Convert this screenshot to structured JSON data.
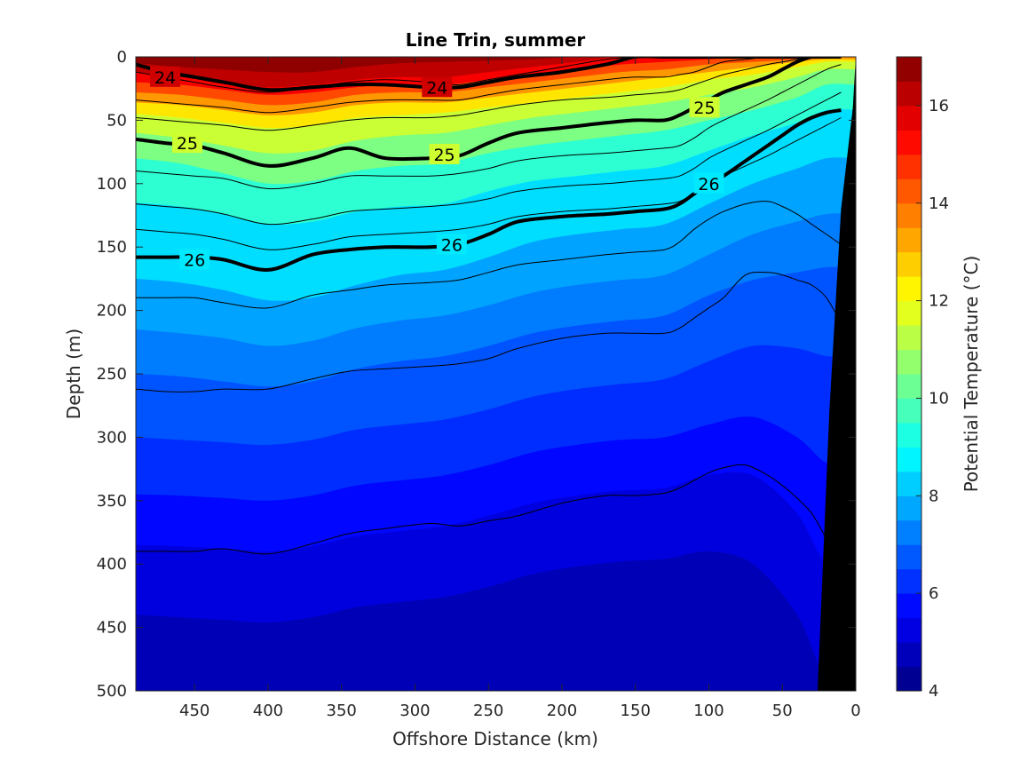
{
  "chart_data": {
    "type": "heatmap",
    "title": "Line Trin, summer",
    "xlabel": "Offshore Distance (km)",
    "ylabel": "Depth (m)",
    "xlim": [
      490,
      0
    ],
    "ylim": [
      0,
      500
    ],
    "x_reversed": true,
    "y_reversed": true,
    "xticks": [
      "450",
      "400",
      "350",
      "300",
      "250",
      "200",
      "150",
      "100",
      "50",
      "0"
    ],
    "yticks": [
      "0",
      "50",
      "100",
      "150",
      "200",
      "250",
      "300",
      "350",
      "400",
      "450",
      "500"
    ],
    "colorbar": {
      "label": "Potential Temperature (°C)",
      "range": [
        4,
        17
      ],
      "ticks": [
        "4",
        "6",
        "8",
        "10",
        "12",
        "14",
        "16"
      ],
      "levels": [
        4.0,
        4.5,
        5.0,
        5.5,
        6.0,
        6.5,
        7.0,
        7.5,
        8.0,
        8.5,
        9.0,
        9.5,
        10.0,
        10.5,
        11.0,
        11.5,
        12.0,
        12.5,
        13.0,
        13.5,
        14.0,
        14.5,
        15.0,
        15.5,
        16.0,
        16.5,
        17.0
      ]
    },
    "x": [
      490,
      460,
      430,
      400,
      370,
      340,
      310,
      280,
      250,
      220,
      190,
      160,
      130,
      100,
      70,
      40,
      20
    ],
    "temperature_isotherms": [
      {
        "temp": 16.5,
        "depth": [
          5,
          8,
          10,
          12,
          12,
          8,
          5,
          4,
          3,
          2,
          0,
          0,
          0,
          0,
          0,
          0,
          0
        ]
      },
      {
        "temp": 16.0,
        "depth": [
          12,
          16,
          20,
          24,
          22,
          18,
          16,
          16,
          12,
          8,
          4,
          0,
          0,
          0,
          0,
          0,
          0
        ]
      },
      {
        "temp": 15.0,
        "depth": [
          20,
          22,
          26,
          30,
          28,
          24,
          22,
          22,
          18,
          14,
          10,
          6,
          4,
          2,
          0,
          0,
          0
        ]
      },
      {
        "temp": 14.0,
        "depth": [
          28,
          30,
          34,
          38,
          36,
          30,
          28,
          28,
          24,
          20,
          16,
          12,
          10,
          6,
          4,
          2,
          0
        ]
      },
      {
        "temp": 13.0,
        "depth": [
          36,
          38,
          42,
          46,
          44,
          38,
          36,
          36,
          32,
          28,
          24,
          20,
          16,
          12,
          8,
          4,
          2
        ]
      },
      {
        "temp": 12.0,
        "depth": [
          45,
          48,
          52,
          56,
          54,
          48,
          46,
          44,
          40,
          36,
          32,
          28,
          24,
          18,
          14,
          8,
          4
        ]
      },
      {
        "temp": 11.0,
        "depth": [
          60,
          64,
          70,
          76,
          74,
          66,
          62,
          60,
          54,
          48,
          44,
          40,
          36,
          30,
          24,
          16,
          10
        ]
      },
      {
        "temp": 10.0,
        "depth": [
          80,
          84,
          92,
          100,
          98,
          90,
          86,
          84,
          76,
          70,
          66,
          62,
          58,
          50,
          42,
          32,
          22
        ]
      },
      {
        "temp": 9.0,
        "depth": [
          115,
          118,
          124,
          132,
          130,
          122,
          118,
          116,
          106,
          98,
          94,
          90,
          86,
          74,
          62,
          52,
          42
        ]
      },
      {
        "temp": 8.0,
        "depth": [
          175,
          178,
          184,
          192,
          190,
          180,
          172,
          168,
          158,
          146,
          140,
          136,
          132,
          116,
          100,
          88,
          80
        ]
      },
      {
        "temp": 7.5,
        "depth": [
          215,
          218,
          222,
          228,
          224,
          214,
          208,
          204,
          196,
          186,
          180,
          176,
          172,
          156,
          140,
          130,
          124
        ]
      },
      {
        "temp": 7.0,
        "depth": [
          250,
          252,
          256,
          260,
          256,
          246,
          240,
          236,
          228,
          218,
          212,
          208,
          204,
          188,
          176,
          170,
          166
        ]
      },
      {
        "temp": 6.5,
        "depth": [
          300,
          302,
          304,
          306,
          302,
          294,
          290,
          286,
          278,
          268,
          262,
          258,
          254,
          240,
          228,
          230,
          236
        ]
      },
      {
        "temp": 6.0,
        "depth": [
          345,
          346,
          348,
          350,
          346,
          338,
          334,
          330,
          322,
          312,
          306,
          302,
          300,
          290,
          284,
          300,
          320
        ]
      },
      {
        "temp": 5.5,
        "depth": [
          385,
          386,
          388,
          390,
          386,
          378,
          374,
          370,
          362,
          352,
          346,
          342,
          340,
          330,
          330,
          360,
          400
        ]
      },
      {
        "temp": 5.0,
        "depth": [
          440,
          442,
          444,
          446,
          442,
          434,
          430,
          426,
          418,
          408,
          402,
          398,
          396,
          390,
          400,
          440,
          490
        ]
      },
      {
        "temp": 4.5,
        "depth": [
          500,
          500,
          500,
          500,
          500,
          500,
          500,
          500,
          500,
          500,
          500,
          500,
          500,
          500,
          500,
          500,
          500
        ]
      }
    ],
    "density_contours": {
      "x": [
        490,
        470,
        450,
        430,
        400,
        370,
        345,
        320,
        290,
        270,
        250,
        230,
        200,
        170,
        150,
        130,
        120,
        110,
        100,
        90,
        75,
        60,
        50,
        40,
        30,
        20,
        10
      ],
      "thin": [
        {
          "depth": [
            12,
            16,
            20,
            24,
            28,
            24,
            20,
            18,
            20,
            22,
            18,
            14,
            8,
            2,
            0,
            0,
            0,
            0,
            0,
            0,
            0,
            0,
            0,
            0,
            0,
            0,
            0
          ]
        },
        {
          "depth": [
            34,
            36,
            38,
            40,
            44,
            40,
            36,
            34,
            34,
            34,
            30,
            26,
            22,
            18,
            16,
            16,
            14,
            12,
            8,
            4,
            2,
            0,
            0,
            0,
            0,
            0,
            0
          ]
        },
        {
          "depth": [
            48,
            50,
            52,
            54,
            58,
            54,
            50,
            48,
            48,
            46,
            42,
            38,
            34,
            32,
            30,
            28,
            26,
            22,
            18,
            14,
            10,
            6,
            4,
            2,
            0,
            0,
            0
          ]
        },
        {
          "depth": [
            90,
            92,
            94,
            96,
            104,
            100,
            94,
            94,
            94,
            92,
            88,
            82,
            78,
            76,
            74,
            72,
            70,
            64,
            56,
            50,
            42,
            34,
            28,
            22,
            16,
            10,
            6
          ]
        },
        {
          "depth": [
            116,
            118,
            120,
            124,
            132,
            128,
            122,
            120,
            118,
            116,
            112,
            106,
            102,
            100,
            98,
            96,
            94,
            88,
            80,
            74,
            66,
            58,
            52,
            46,
            40,
            34,
            28
          ]
        },
        {
          "depth": [
            136,
            138,
            140,
            144,
            152,
            148,
            142,
            140,
            138,
            136,
            132,
            126,
            122,
            120,
            118,
            116,
            114,
            108,
            100,
            94,
            86,
            78,
            72,
            66,
            60,
            54,
            48
          ]
        },
        {
          "depth": [
            190,
            190,
            190,
            194,
            198,
            188,
            184,
            180,
            178,
            176,
            170,
            164,
            160,
            156,
            154,
            152,
            146,
            136,
            128,
            122,
            116,
            114,
            118,
            124,
            132,
            140,
            148
          ]
        },
        {
          "depth": [
            262,
            264,
            264,
            262,
            262,
            254,
            248,
            246,
            244,
            242,
            238,
            230,
            222,
            218,
            218,
            218,
            214,
            206,
            198,
            190,
            172,
            170,
            172,
            176,
            180,
            190,
            210
          ]
        },
        {
          "depth": [
            390,
            390,
            390,
            388,
            392,
            384,
            376,
            372,
            368,
            370,
            366,
            362,
            352,
            346,
            346,
            344,
            340,
            334,
            328,
            324,
            322,
            330,
            338,
            348,
            360,
            380,
            400
          ]
        }
      ],
      "labeled": [
        {
          "label": "24",
          "depth": [
            6,
            12,
            16,
            20,
            26,
            24,
            22,
            22,
            24,
            24,
            20,
            16,
            12,
            6,
            0,
            0,
            0,
            0,
            0,
            0,
            0,
            0,
            0,
            0,
            0,
            0,
            0
          ],
          "label_at": [
            [
              470,
              16
            ],
            [
              285,
              24
            ]
          ]
        },
        {
          "label": "25",
          "depth": [
            65,
            68,
            70,
            76,
            86,
            80,
            72,
            80,
            80,
            78,
            68,
            60,
            56,
            52,
            50,
            50,
            46,
            40,
            34,
            28,
            22,
            16,
            10,
            4,
            0,
            0,
            0
          ],
          "label_at": [
            [
              455,
              68
            ],
            [
              280,
              77
            ],
            [
              103,
              40
            ]
          ]
        },
        {
          "label": "26",
          "depth": [
            158,
            158,
            158,
            160,
            168,
            156,
            152,
            150,
            150,
            148,
            140,
            130,
            126,
            124,
            122,
            120,
            116,
            108,
            100,
            94,
            82,
            70,
            62,
            54,
            48,
            44,
            42
          ],
          "label_at": [
            [
              450,
              160
            ],
            [
              275,
              148
            ],
            [
              100,
              100
            ]
          ]
        }
      ]
    },
    "bathymetry_color": "#000000"
  }
}
